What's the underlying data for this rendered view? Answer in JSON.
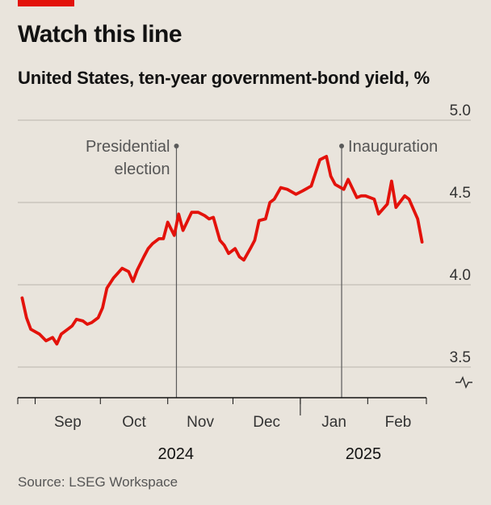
{
  "header": {
    "title": "Watch this line",
    "subtitle": "United States, ten-year government-bond yield, %"
  },
  "source": "Source: LSEG Workspace",
  "colors": {
    "line": "#e3120b",
    "grid": "#b9b4ad",
    "marker": "#5a5a5a",
    "background": "#e9e4dc"
  },
  "chart_data": {
    "type": "line",
    "title": "Watch this line",
    "subtitle": "United States, ten-year government-bond yield, %",
    "ylim": [
      3.5,
      5.0
    ],
    "y_ticks": [
      "5.0",
      "4.5",
      "4.0",
      "3.5"
    ],
    "x_ticks": [
      "Sep",
      "Oct",
      "Nov",
      "Dec",
      "Jan",
      "Feb"
    ],
    "years": [
      "2024",
      "2025"
    ],
    "axis_break": true,
    "grid": true,
    "annotations": [
      {
        "label_lines": [
          "Presidential",
          "election"
        ],
        "date": "2024-11-05"
      },
      {
        "label_lines": [
          "Inauguration"
        ],
        "date": "2025-01-20"
      }
    ],
    "series": [
      {
        "color": "#e3120b",
        "x": [
          "2024-08-26",
          "2024-08-28",
          "2024-08-30",
          "2024-09-03",
          "2024-09-06",
          "2024-09-09",
          "2024-09-11",
          "2024-09-13",
          "2024-09-16",
          "2024-09-18",
          "2024-09-20",
          "2024-09-23",
          "2024-09-25",
          "2024-09-27",
          "2024-09-30",
          "2024-10-02",
          "2024-10-04",
          "2024-10-07",
          "2024-10-09",
          "2024-10-11",
          "2024-10-14",
          "2024-10-16",
          "2024-10-18",
          "2024-10-21",
          "2024-10-23",
          "2024-10-25",
          "2024-10-28",
          "2024-10-30",
          "2024-11-01",
          "2024-11-04",
          "2024-11-06",
          "2024-11-08",
          "2024-11-12",
          "2024-11-15",
          "2024-11-18",
          "2024-11-20",
          "2024-11-22",
          "2024-11-25",
          "2024-11-27",
          "2024-11-29",
          "2024-12-02",
          "2024-12-04",
          "2024-12-06",
          "2024-12-09",
          "2024-12-11",
          "2024-12-13",
          "2024-12-16",
          "2024-12-18",
          "2024-12-20",
          "2024-12-23",
          "2024-12-26",
          "2024-12-30",
          "2025-01-02",
          "2025-01-06",
          "2025-01-08",
          "2025-01-10",
          "2025-01-13",
          "2025-01-15",
          "2025-01-17",
          "2025-01-21",
          "2025-01-23",
          "2025-01-27",
          "2025-01-29",
          "2025-01-31",
          "2025-02-04",
          "2025-02-06",
          "2025-02-10",
          "2025-02-12",
          "2025-02-14",
          "2025-02-18",
          "2025-02-20",
          "2025-02-24",
          "2025-02-26"
        ],
        "values": [
          3.92,
          3.8,
          3.73,
          3.7,
          3.66,
          3.68,
          3.64,
          3.7,
          3.73,
          3.75,
          3.79,
          3.78,
          3.76,
          3.77,
          3.8,
          3.86,
          3.98,
          4.04,
          4.07,
          4.1,
          4.08,
          4.02,
          4.09,
          4.17,
          4.22,
          4.25,
          4.28,
          4.28,
          4.38,
          4.3,
          4.43,
          4.33,
          4.44,
          4.44,
          4.42,
          4.4,
          4.41,
          4.27,
          4.24,
          4.19,
          4.22,
          4.17,
          4.15,
          4.22,
          4.27,
          4.39,
          4.4,
          4.5,
          4.52,
          4.59,
          4.58,
          4.55,
          4.57,
          4.6,
          4.68,
          4.76,
          4.78,
          4.66,
          4.61,
          4.58,
          4.64,
          4.53,
          4.54,
          4.54,
          4.52,
          4.43,
          4.49,
          4.63,
          4.47,
          4.54,
          4.52,
          4.4,
          4.26
        ]
      }
    ]
  }
}
